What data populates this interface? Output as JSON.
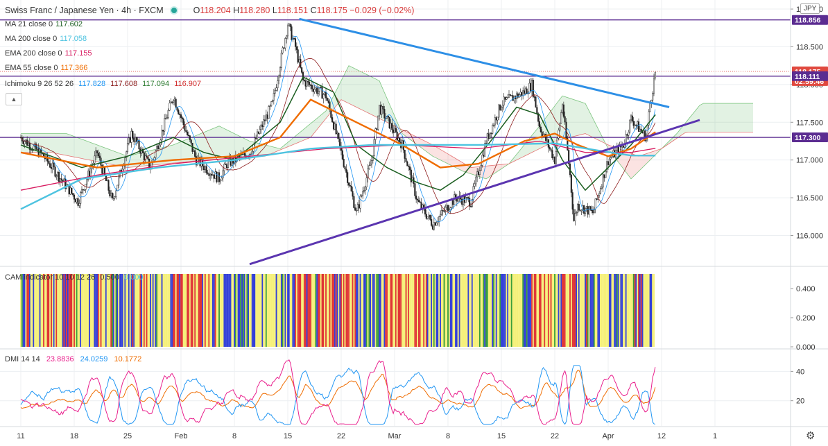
{
  "header": {
    "symbol": "Swiss Franc / Japanese Yen",
    "interval": "4h",
    "exchange": "FXCM",
    "open_label": "O",
    "open": "118.204",
    "high_label": "H",
    "high": "118.280",
    "low_label": "L",
    "low": "118.151",
    "close_label": "C",
    "close": "118.175",
    "change": "−0.029 (−0.02%)",
    "currency": "JPY"
  },
  "indicators": [
    {
      "label": "MA 21 close 0",
      "value": "117.602",
      "color": "#1b5e20"
    },
    {
      "label": "MA 200 close 0",
      "value": "117.058",
      "color": "#4dc3e0"
    },
    {
      "label": "EMA 200 close 0",
      "value": "117.155",
      "color": "#d81b60"
    },
    {
      "label": "EMA 55 close 0",
      "value": "117.366",
      "color": "#ef6c00"
    }
  ],
  "ichimoku": {
    "label": "Ichimoku 9 26 52 26",
    "values": [
      "117.828",
      "117.608",
      "117.094",
      "116.907"
    ],
    "colors": [
      "#2196f3",
      "#8d1c1c",
      "#2e7d32",
      "#d32f2f"
    ]
  },
  "collapse_glyph": "▲",
  "price_axis": {
    "ticks": [
      "119.000",
      "118.500",
      "118.000",
      "117.500",
      "117.000",
      "116.500",
      "116.000"
    ],
    "tick_values": [
      119.0,
      118.5,
      118.0,
      117.5,
      117.0,
      116.5,
      116.0
    ],
    "range": [
      115.6,
      119.12
    ]
  },
  "price_labels": [
    {
      "text": "118.856",
      "value": 118.856,
      "bg": "#5b2c91",
      "fg": "#ffffff"
    },
    {
      "text": "118.175",
      "value": 118.175,
      "bg": "#e0493f",
      "fg": "#ffffff"
    },
    {
      "text": "02:59:46",
      "value": 118.175,
      "bg": "#e0493f",
      "fg": "#ffffff",
      "second_line": true
    },
    {
      "text": "118.111",
      "value": 118.111,
      "bg": "#5b2c91",
      "fg": "#ffffff"
    },
    {
      "text": "117.300",
      "value": 117.3,
      "bg": "#5b2c91",
      "fg": "#ffffff"
    }
  ],
  "cam": {
    "label": "CAM indicator 10 10 12 26",
    "v1": "0.500",
    "v1_color": "#333333",
    "v2": "0.000",
    "v2_color": "#4dc3e0",
    "ticks": [
      "0.400",
      "0.200",
      "0.000"
    ],
    "tick_values": [
      0.4,
      0.2,
      0.0
    ],
    "range": [
      0.0,
      0.5
    ],
    "colors": {
      "Y": "#f5f07a",
      "B": "#3340d8",
      "R": "#e03535",
      "G": "#3a9d3a"
    }
  },
  "dmi": {
    "label": "DMI 14 14",
    "plus": "23.8836",
    "plus_color": "#e91e8c",
    "minus": "24.0259",
    "minus_color": "#2196f3",
    "adx": "10.1772",
    "adx_color": "#ef6c00",
    "ticks": [
      "40",
      "20"
    ],
    "tick_values": [
      40,
      20
    ],
    "range": [
      0,
      52
    ]
  },
  "time_axis": {
    "labels": [
      "11",
      "18",
      "25",
      "Feb",
      "8",
      "15",
      "22",
      "Mar",
      "8",
      "15",
      "22",
      "Apr",
      "12",
      "1"
    ],
    "positions": [
      0,
      7,
      14,
      21,
      28,
      35,
      42,
      49,
      56,
      63,
      70,
      77,
      84,
      91
    ]
  },
  "chart_data": {
    "type": "candlestick",
    "title": "Swiss Franc / Japanese Yen",
    "x_unit": "days since 11 Jan",
    "ylim": [
      115.6,
      119.12
    ],
    "close_series_anchors": {
      "x": [
        0,
        3,
        7.5,
        10,
        12,
        14.5,
        17,
        20,
        23,
        26,
        27,
        30,
        33,
        35,
        36,
        37,
        40,
        42,
        44,
        46,
        47,
        50,
        52,
        54,
        57,
        59,
        61,
        63,
        66,
        67,
        68,
        70,
        71,
        72,
        72.5,
        73,
        75,
        77,
        79,
        80,
        82,
        82.5,
        83.2
      ],
      "y": [
        117.3,
        117.05,
        116.45,
        117.1,
        116.45,
        117.35,
        116.9,
        117.85,
        117.0,
        116.75,
        116.95,
        117.1,
        117.75,
        118.8,
        118.5,
        118.05,
        117.85,
        117.1,
        116.3,
        117.0,
        117.7,
        117.2,
        116.45,
        116.15,
        116.5,
        116.45,
        117.25,
        117.75,
        117.9,
        118.0,
        117.45,
        117.0,
        117.75,
        116.8,
        116.2,
        116.4,
        116.3,
        117.0,
        117.2,
        117.55,
        117.3,
        117.75,
        118.175
      ]
    },
    "horizontal_lines": [
      {
        "price": 118.856,
        "color": "#5b2c91"
      },
      {
        "price": 118.111,
        "color": "#5b2c91"
      },
      {
        "price": 117.3,
        "color": "#5b2c91"
      }
    ],
    "trendlines": [
      {
        "x1": 36.5,
        "y1": 118.87,
        "x2": 85,
        "y2": 117.7,
        "color": "#2d8fe6"
      },
      {
        "x1": 30,
        "y1": 115.62,
        "x2": 89,
        "y2": 117.53,
        "color": "#5b35b0"
      }
    ],
    "ma_lines": [
      {
        "name": "MA 21",
        "color": "#1b5e20",
        "x": [
          0,
          8,
          14,
          20,
          24,
          28,
          34,
          37,
          41,
          44,
          48,
          52,
          55,
          58,
          62,
          65,
          68,
          71,
          74,
          77,
          80,
          83.2
        ],
        "y": [
          117.2,
          116.9,
          117.05,
          117.3,
          117.1,
          117.0,
          117.5,
          118.1,
          117.9,
          117.2,
          116.9,
          116.7,
          116.6,
          116.8,
          117.3,
          117.7,
          117.6,
          117.0,
          116.6,
          116.9,
          117.2,
          117.6
        ]
      },
      {
        "name": "EMA 55",
        "color": "#ef6c00",
        "x": [
          0,
          10,
          20,
          28,
          34,
          38,
          44,
          50,
          55,
          60,
          66,
          70,
          73,
          77,
          80,
          83.2
        ],
        "y": [
          117.1,
          116.9,
          117.0,
          117.05,
          117.3,
          117.8,
          117.5,
          117.2,
          116.9,
          116.95,
          117.25,
          117.35,
          117.2,
          117.05,
          117.15,
          117.37
        ]
      },
      {
        "name": "EMA 200",
        "color": "#d81b60",
        "x": [
          0,
          10,
          20,
          30,
          40,
          50,
          60,
          68,
          74,
          80,
          83.2
        ],
        "y": [
          116.6,
          116.8,
          116.95,
          117.05,
          117.15,
          117.2,
          117.15,
          117.25,
          117.1,
          117.1,
          117.155
        ]
      },
      {
        "name": "MA 200",
        "color": "#4dc3e0",
        "x": [
          0,
          8,
          18,
          28,
          38,
          46,
          52,
          60,
          70,
          76,
          80,
          83.2
        ],
        "y": [
          116.35,
          116.75,
          116.9,
          117.0,
          117.15,
          117.2,
          117.2,
          117.2,
          117.22,
          117.12,
          117.06,
          117.058
        ]
      }
    ]
  }
}
